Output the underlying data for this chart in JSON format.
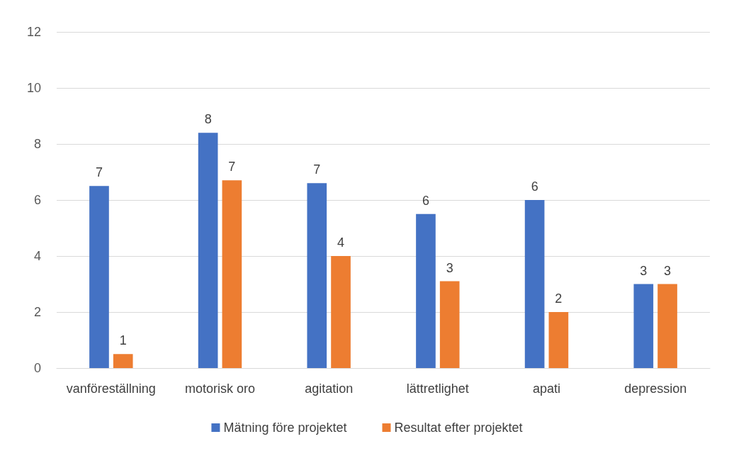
{
  "chart_data": {
    "type": "bar",
    "categories": [
      "vanföreställning",
      "motorisk oro",
      "agitation",
      "lättretlighet",
      "apati",
      "depression"
    ],
    "series": [
      {
        "name": "Mätning före projektet",
        "color": "#4472c4",
        "values": [
          6.5,
          8.4,
          6.6,
          5.5,
          6.0,
          3.0
        ],
        "value_labels": [
          "7",
          "8",
          "7",
          "6",
          "6",
          "3"
        ]
      },
      {
        "name": "Resultat efter projektet",
        "color": "#ed7d31",
        "values": [
          0.5,
          6.7,
          4.0,
          3.1,
          2.0,
          3.0
        ],
        "value_labels": [
          "1",
          "7",
          "4",
          "3",
          "2",
          "3"
        ]
      }
    ],
    "ylim": [
      0,
      12
    ],
    "yticks": [
      0,
      2,
      4,
      6,
      8,
      10,
      12
    ],
    "grid": "y",
    "legend": "bottom"
  }
}
